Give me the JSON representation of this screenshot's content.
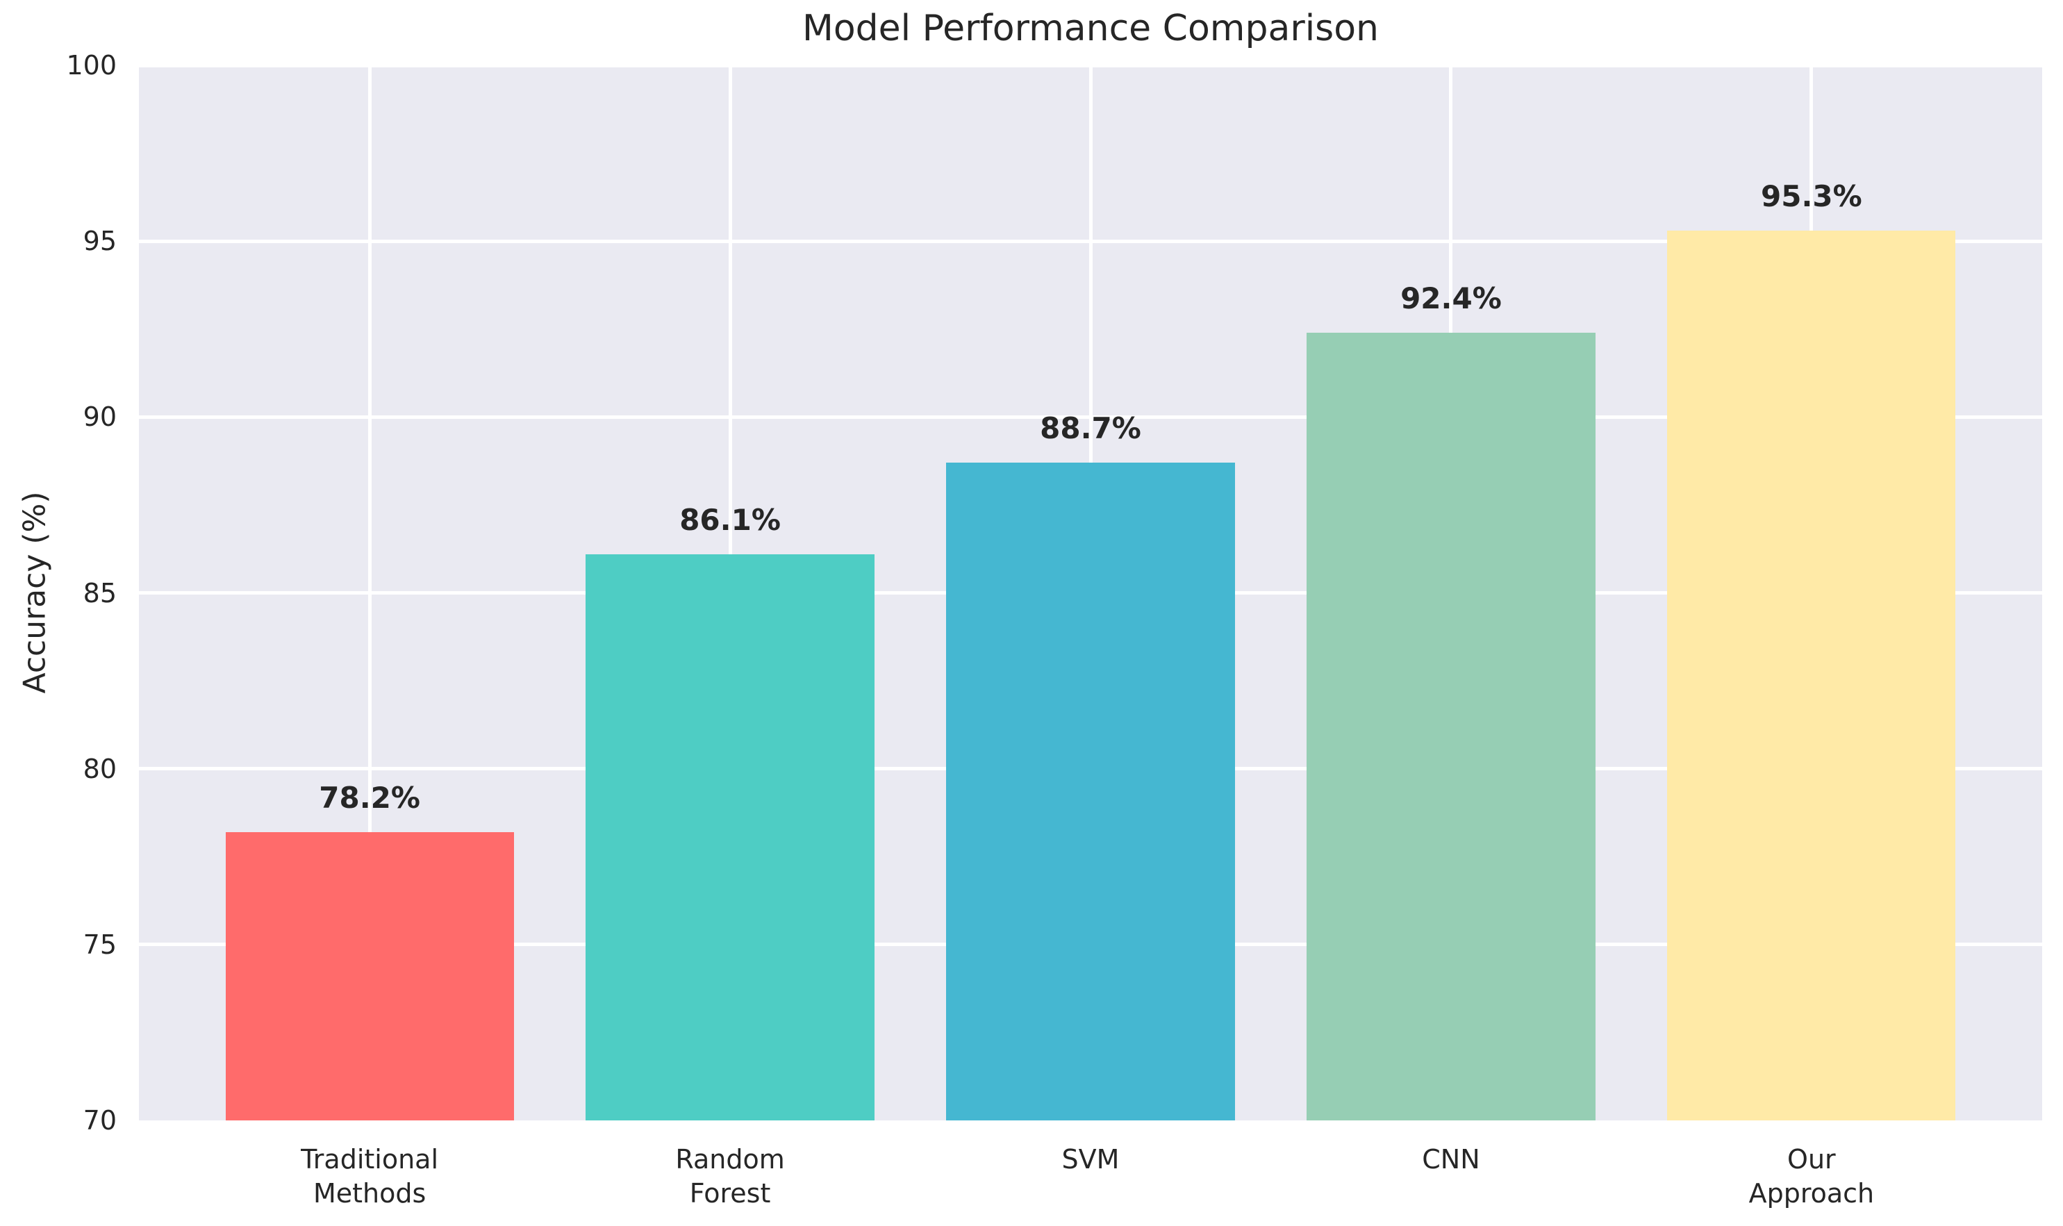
{
  "chart_data": {
    "type": "bar",
    "title": "Model Performance Comparison",
    "xlabel": "",
    "ylabel": "Accuracy (%)",
    "categories": [
      "Traditional\nMethods",
      "Random\nForest",
      "SVM",
      "CNN",
      "Our\nApproach"
    ],
    "values": [
      78.2,
      86.1,
      88.7,
      92.4,
      95.3
    ],
    "bar_labels": [
      "78.2%",
      "86.1%",
      "88.7%",
      "92.4%",
      "95.3%"
    ],
    "bar_colors": [
      "#FF6B6B",
      "#4ECDC4",
      "#45B7D1",
      "#96CEB4",
      "#FFEAA7"
    ],
    "ylim": [
      70,
      100
    ],
    "yticks": [
      70,
      75,
      80,
      85,
      90,
      95,
      100
    ],
    "bar_width_units": 0.8,
    "grid": "on",
    "legend": "none",
    "colors": {
      "plot_background": "#EAEAF2",
      "figure_background": "#FFFFFF",
      "gridline": "#FFFFFF",
      "text": "#262626"
    }
  }
}
